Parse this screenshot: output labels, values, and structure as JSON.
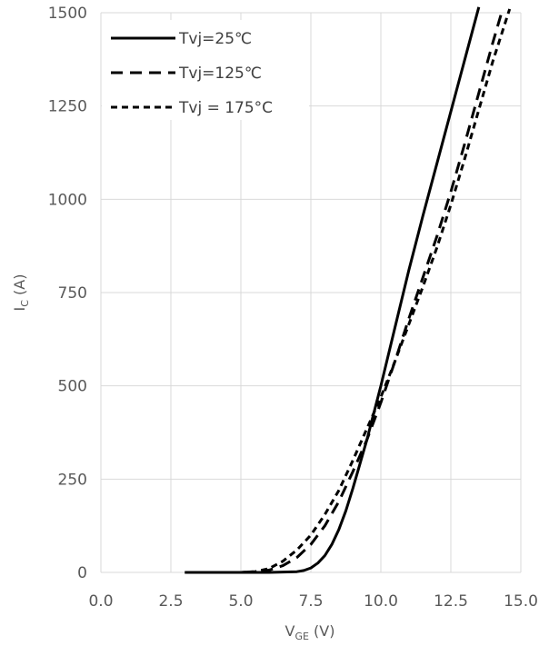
{
  "chart_data": {
    "type": "line",
    "xlim": [
      0,
      15
    ],
    "ylim": [
      0,
      1500
    ],
    "x_ticks": [
      "0.0",
      "2.5",
      "5.0",
      "7.5",
      "10.0",
      "12.5",
      "15.0"
    ],
    "y_ticks": [
      "0",
      "250",
      "500",
      "750",
      "1000",
      "1250",
      "1500"
    ],
    "xlabel": {
      "main": "V",
      "sub": "GE",
      "unit": " (V)"
    },
    "ylabel": {
      "main": "I",
      "sub": "C",
      "unit": " (A)"
    },
    "grid": true,
    "legend_position": "top-left",
    "series": [
      {
        "name": "Tvj=25℃",
        "dash": "solid",
        "color": "#000000",
        "x": [
          3.0,
          5.0,
          6.0,
          6.5,
          7.0,
          7.25,
          7.5,
          7.75,
          8.0,
          8.25,
          8.5,
          8.75,
          9.0,
          9.25,
          9.5,
          10.0,
          10.5,
          11.0,
          11.5,
          12.0,
          12.5,
          13.0,
          13.5
        ],
        "y": [
          0,
          0,
          0,
          1,
          2,
          5,
          12,
          25,
          45,
          75,
          115,
          165,
          225,
          290,
          355,
          500,
          655,
          810,
          955,
          1095,
          1235,
          1375,
          1515
        ]
      },
      {
        "name": "Tvj=125℃",
        "dash": "long",
        "color": "#000000",
        "x": [
          3.0,
          5.0,
          5.5,
          6.0,
          6.5,
          7.0,
          7.5,
          8.0,
          8.5,
          9.0,
          9.5,
          10.0,
          10.5,
          11.0,
          11.5,
          12.0,
          12.5,
          13.0,
          13.5,
          14.0,
          14.35
        ],
        "y": [
          0,
          0,
          2,
          6,
          18,
          40,
          75,
          125,
          190,
          270,
          355,
          455,
          565,
          680,
          790,
          900,
          1020,
          1150,
          1285,
          1420,
          1510
        ]
      },
      {
        "name": "Tvj = 175°C",
        "dash": "short",
        "color": "#000000",
        "x": [
          3.0,
          5.0,
          5.5,
          6.0,
          6.5,
          7.0,
          7.5,
          8.0,
          8.5,
          9.0,
          9.5,
          10.0,
          10.5,
          11.0,
          11.5,
          12.0,
          12.5,
          13.0,
          13.5,
          14.0,
          14.6
        ],
        "y": [
          0,
          0,
          2,
          10,
          30,
          60,
          100,
          155,
          220,
          300,
          385,
          470,
          565,
          665,
          765,
          870,
          985,
          1110,
          1240,
          1370,
          1510
        ]
      }
    ]
  }
}
